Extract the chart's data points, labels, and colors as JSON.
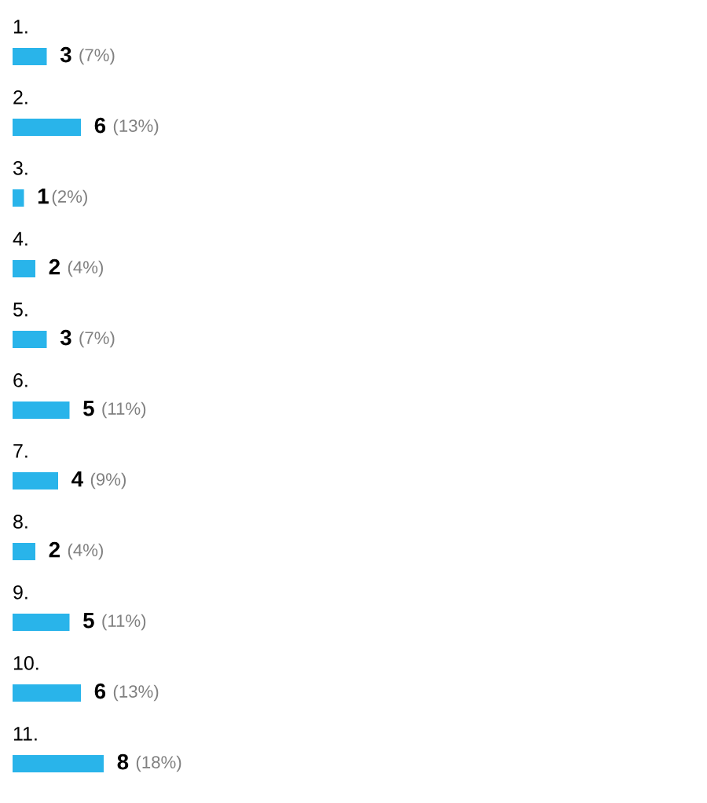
{
  "chart_data": {
    "type": "bar",
    "orientation": "horizontal",
    "color": "#29b4ea",
    "categories": [
      "1.",
      "2.",
      "3.",
      "4.",
      "5.",
      "6.",
      "7.",
      "8.",
      "9.",
      "10.",
      "11."
    ],
    "values": [
      3,
      6,
      1,
      2,
      3,
      5,
      4,
      2,
      5,
      6,
      8
    ],
    "value_labels": [
      "3 (7%)",
      "6 (13%)",
      "1(2%)",
      "2 (4%)",
      "3 (7%)",
      "5 (11%)",
      "4 (9%)",
      "2 (4%)",
      "5 (11%)",
      "6 (13%)",
      "8 (18%)"
    ]
  }
}
